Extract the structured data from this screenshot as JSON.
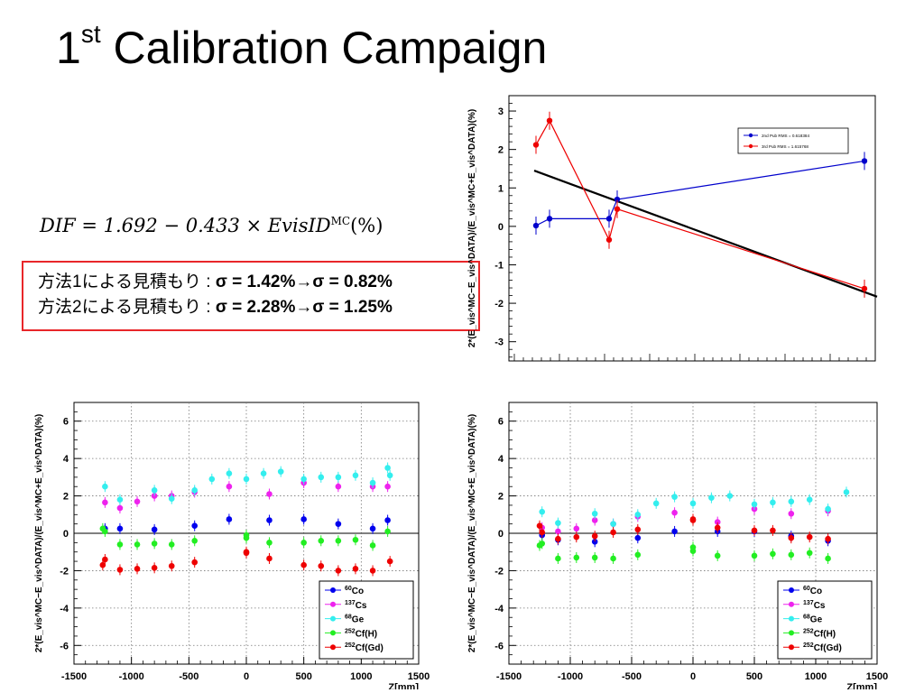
{
  "slide": {
    "title_main": "1",
    "title_sup": "st",
    "title_rest": " Calibration Campaign",
    "formula_text": "DIF = 1.692 − 0.433 × EvisID",
    "formula_sup": "MC",
    "formula_end": "(%)",
    "estimate_line1_label": "方法1による見積もり : ",
    "estimate_line1_value": "σ = 1.42%→σ = 0.82%",
    "estimate_line2_label": "方法2による見積もり : ",
    "estimate_line2_value": "σ = 2.28%→σ = 1.25%"
  },
  "colors": {
    "red_box": "#e8262a",
    "co60": "#0000ee",
    "cs137": "#ee22ee",
    "ge68": "#33eeee",
    "cfh": "#22ee22",
    "cfgd": "#ee0000",
    "fit_line": "#000000"
  },
  "chart_data": [
    {
      "type": "line",
      "ylabel": "2*(E_vis^MC−E_vis^DATA)/(E_vis^MC+E_vis^DATA)(%)",
      "ylim": [
        -3.5,
        3.4
      ],
      "yticks": [
        "3",
        "2",
        "1",
        "0",
        "-1",
        "-2",
        "-3"
      ],
      "grid": false,
      "legend_position": "top-right",
      "series": [
        {
          "name": "2nd Pub RMS = 0.618384",
          "color": "#0000cc",
          "points": [
            [
              1,
              0.02
            ],
            [
              2,
              0.2
            ],
            [
              3,
              0.2
            ],
            [
              4,
              0.7
            ],
            [
              5,
              1.7
            ]
          ]
        },
        {
          "name": "3rd Pub RMS = 1.615768",
          "color": "#ee0000",
          "points": [
            [
              1,
              2.12
            ],
            [
              2,
              2.75
            ],
            [
              3,
              -0.35
            ],
            [
              4,
              0.45
            ],
            [
              5,
              -1.62
            ]
          ]
        }
      ],
      "fit": {
        "from": [
          0.0,
          1.45
        ],
        "to": [
          5.2,
          -1.83
        ]
      }
    },
    {
      "type": "scatter",
      "xlabel": "Z[mm]",
      "ylabel": "2*(E_vis^MC−E_vis^DATA)/(E_vis^MC+E_vis^DATA)(%)",
      "xlim": [
        -1500,
        1500
      ],
      "ylim": [
        -7,
        7
      ],
      "xticks": [
        "-1500",
        "-1000",
        "-500",
        "0",
        "500",
        "1000",
        "1500"
      ],
      "yticks": [
        "6",
        "4",
        "2",
        "0",
        "-2",
        "-4",
        "-6"
      ],
      "grid": true,
      "legend_position": "bottom-right",
      "series": [
        {
          "name": "60Co",
          "iso": "60",
          "el": "Co",
          "color": "#0000ee",
          "x": [
            -1230,
            -1100,
            -800,
            -450,
            -150,
            200,
            500,
            800,
            1100,
            1230
          ],
          "y": [
            0.25,
            0.25,
            0.2,
            0.4,
            0.75,
            0.7,
            0.75,
            0.5,
            0.25,
            0.7
          ]
        },
        {
          "name": "137Cs",
          "iso": "137",
          "el": "Cs",
          "color": "#ee22ee",
          "x": [
            -1230,
            -1100,
            -950,
            -800,
            -650,
            -450,
            -150,
            200,
            500,
            800,
            1100,
            1230
          ],
          "y": [
            1.65,
            1.35,
            1.7,
            2.0,
            2.0,
            2.2,
            2.5,
            2.1,
            2.7,
            2.5,
            2.5,
            2.5
          ]
        },
        {
          "name": "68Ge",
          "iso": "68",
          "el": "Ge",
          "color": "#33eeee",
          "x": [
            -1230,
            -1100,
            -800,
            -650,
            -450,
            -300,
            -150,
            0,
            150,
            300,
            500,
            650,
            800,
            950,
            1100,
            1230,
            1250
          ],
          "y": [
            2.5,
            1.8,
            2.3,
            1.85,
            2.3,
            2.9,
            3.2,
            2.9,
            3.2,
            3.3,
            2.9,
            3.0,
            3.0,
            3.1,
            2.7,
            3.5,
            3.1
          ]
        },
        {
          "name": "252Cf(H)",
          "iso": "252",
          "el": "Cf(H)",
          "color": "#22ee22",
          "x": [
            -1250,
            -1230,
            -1100,
            -950,
            -800,
            -650,
            -450,
            0,
            0,
            200,
            500,
            650,
            800,
            950,
            1100,
            1230
          ],
          "y": [
            0.25,
            0.1,
            -0.6,
            -0.6,
            -0.55,
            -0.6,
            -0.4,
            -0.1,
            -0.25,
            -0.5,
            -0.5,
            -0.4,
            -0.4,
            -0.35,
            -0.65,
            0.1
          ]
        },
        {
          "name": "252Cf(Gd)",
          "iso": "252",
          "el": "Cf(Gd)",
          "color": "#ee0000",
          "x": [
            -1250,
            -1230,
            -1100,
            -950,
            -800,
            -650,
            -450,
            0,
            0,
            200,
            500,
            650,
            800,
            950,
            1100,
            1250
          ],
          "y": [
            -1.7,
            -1.4,
            -1.95,
            -1.9,
            -1.85,
            -1.75,
            -1.55,
            -1.0,
            -1.05,
            -1.35,
            -1.7,
            -1.75,
            -2.0,
            -1.9,
            -2.0,
            -1.5
          ]
        }
      ]
    },
    {
      "type": "scatter",
      "xlabel": "Z[mm]",
      "ylabel": "2*(E_vis^MC−E_vis^DATA)/(E_vis^MC+E_vis^DATA)(%)",
      "xlim": [
        -1500,
        1500
      ],
      "ylim": [
        -7,
        7
      ],
      "xticks": [
        "-1500",
        "-1000",
        "-500",
        "0",
        "500",
        "1000",
        "1500"
      ],
      "yticks": [
        "6",
        "4",
        "2",
        "0",
        "-2",
        "-4",
        "-6"
      ],
      "grid": true,
      "legend_position": "bottom-right",
      "series": [
        {
          "name": "60Co",
          "iso": "60",
          "el": "Co",
          "color": "#0000ee",
          "x": [
            -1230,
            -1100,
            -800,
            -450,
            -150,
            200,
            500,
            800,
            1100
          ],
          "y": [
            -0.1,
            -0.35,
            -0.45,
            -0.25,
            0.1,
            0.1,
            0.1,
            -0.15,
            -0.4
          ]
        },
        {
          "name": "137Cs",
          "iso": "137",
          "el": "Cs",
          "color": "#ee22ee",
          "x": [
            -1230,
            -1100,
            -950,
            -800,
            -650,
            -450,
            -150,
            200,
            500,
            800,
            1100
          ],
          "y": [
            0.3,
            0.1,
            0.25,
            0.7,
            0.5,
            0.9,
            1.1,
            0.6,
            1.3,
            1.05,
            1.2
          ]
        },
        {
          "name": "68Ge",
          "iso": "68",
          "el": "Ge",
          "color": "#33eeee",
          "x": [
            -1230,
            -1100,
            -800,
            -650,
            -450,
            -300,
            -150,
            0,
            150,
            300,
            500,
            650,
            800,
            950,
            1100,
            1250
          ],
          "y": [
            1.15,
            0.55,
            1.05,
            0.5,
            1.0,
            1.6,
            1.95,
            1.6,
            1.9,
            2.0,
            1.55,
            1.65,
            1.7,
            1.8,
            1.3,
            2.2
          ]
        },
        {
          "name": "252Cf(H)",
          "iso": "252",
          "el": "Cf(H)",
          "color": "#22ee22",
          "x": [
            -1250,
            -1230,
            -1100,
            -950,
            -800,
            -650,
            -450,
            0,
            0,
            200,
            500,
            650,
            800,
            950,
            1100
          ],
          "y": [
            -0.65,
            -0.55,
            -1.35,
            -1.3,
            -1.3,
            -1.35,
            -1.15,
            -0.75,
            -0.95,
            -1.2,
            -1.2,
            -1.1,
            -1.15,
            -1.05,
            -1.35
          ]
        },
        {
          "name": "252Cf(Gd)",
          "iso": "252",
          "el": "Cf(Gd)",
          "color": "#ee0000",
          "x": [
            -1250,
            -1230,
            -1100,
            -950,
            -800,
            -650,
            -450,
            0,
            0,
            200,
            500,
            650,
            800,
            950,
            1100
          ],
          "y": [
            0.4,
            0.05,
            -0.3,
            -0.2,
            -0.15,
            0.05,
            0.2,
            0.75,
            0.7,
            0.3,
            0.15,
            0.15,
            -0.25,
            -0.2,
            -0.3
          ]
        }
      ]
    }
  ]
}
